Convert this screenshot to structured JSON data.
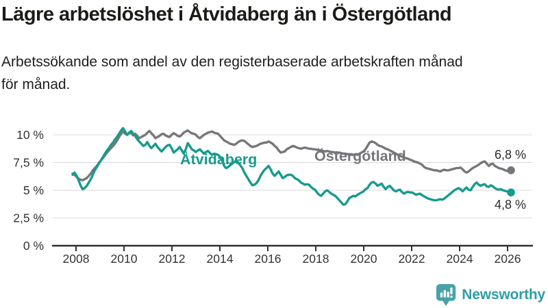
{
  "header": {
    "title": "Lägre arbetslöshet i Åtvidaberg än i Östergötland",
    "subtitle": "Arbetssökande som andel av den registerbaserade arbetskraften månad\nför månad."
  },
  "footer": {
    "brand": "Newsworthy"
  },
  "colors": {
    "atvidaberg": "#169b8e",
    "ostergotland": "#76767b",
    "grid": "#d9d9d9",
    "axis": "#2e2e2e",
    "tick_text": "#333333",
    "end_label_text": "#2c2c2c",
    "title_text": "#1b1b18",
    "brand_teal": "#2d9da5",
    "brand_icon_teal": "#4aa2a6"
  },
  "chart_data": {
    "type": "line",
    "title": "Lägre arbetslöshet i Åtvidaberg än i Östergötland",
    "subtitle": "Arbetssökande som andel av den registerbaserade arbetskraften månad för månad.",
    "unit": "%",
    "frequency": "monthly",
    "x_range": [
      "2008-01",
      "2026-02"
    ],
    "x_ticks": [
      2008,
      2010,
      2012,
      2014,
      2016,
      2018,
      2020,
      2022,
      2024,
      2026
    ],
    "x_tick_labels": [
      "2008",
      "2010",
      "2012",
      "2014",
      "2016",
      "2018",
      "2020",
      "2022",
      "2024",
      "2026"
    ],
    "y_ticks": [
      0,
      2.5,
      5,
      7.5,
      10
    ],
    "y_tick_labels": [
      "0 %",
      "2,5 %",
      "5 %",
      "7,5 %",
      "10 %"
    ],
    "ylim": [
      0,
      11.5
    ],
    "grid": "horizontal",
    "legend": "inline-labels",
    "series": [
      {
        "id": "atvidaberg",
        "name": "Åtvidaberg",
        "color": "#169b8e",
        "end_label": "4,8 %",
        "end_value": 4.8,
        "values": [
          6.4,
          6.6,
          6.3,
          5.9,
          5.4,
          5.1,
          5.2,
          5.4,
          5.7,
          6.0,
          6.4,
          6.8,
          7.1,
          7.4,
          7.7,
          8.0,
          8.3,
          8.6,
          8.8,
          9.1,
          9.3,
          9.6,
          9.8,
          10.1,
          10.4,
          10.6,
          10.3,
          10.0,
          10.2,
          10.35,
          10.1,
          9.9,
          9.6,
          9.4,
          9.2,
          9.0,
          9.1,
          9.35,
          9.0,
          8.8,
          9.0,
          9.2,
          8.9,
          8.7,
          8.5,
          8.7,
          8.9,
          9.05,
          9.1,
          8.8,
          8.4,
          8.55,
          8.7,
          8.9,
          8.6,
          8.3,
          8.7,
          9.25,
          9.0,
          8.7,
          8.6,
          8.45,
          8.6,
          8.7,
          8.5,
          8.3,
          8.45,
          8.55,
          8.35,
          8.2,
          8.3,
          8.25,
          8.2,
          8.0,
          7.7,
          7.2,
          7.0,
          7.1,
          7.25,
          7.4,
          7.55,
          7.65,
          7.5,
          7.25,
          7.0,
          6.6,
          6.3,
          6.0,
          5.7,
          5.45,
          5.5,
          5.65,
          5.9,
          6.3,
          6.6,
          6.85,
          7.0,
          7.2,
          6.9,
          6.5,
          6.3,
          6.5,
          6.7,
          6.4,
          6.1,
          6.2,
          6.35,
          6.4,
          6.4,
          6.3,
          6.1,
          6.0,
          5.9,
          5.7,
          5.6,
          5.5,
          5.55,
          5.5,
          5.3,
          5.15,
          5.05,
          4.8,
          4.6,
          4.5,
          4.7,
          4.9,
          5.0,
          4.85,
          4.7,
          4.6,
          4.5,
          4.3,
          4.1,
          3.9,
          3.7,
          3.75,
          4.0,
          4.3,
          4.4,
          4.5,
          4.45,
          4.6,
          4.7,
          4.8,
          4.9,
          5.1,
          5.2,
          5.5,
          5.7,
          5.75,
          5.6,
          5.4,
          5.5,
          5.6,
          5.3,
          5.1,
          5.3,
          5.4,
          5.2,
          5.0,
          4.9,
          5.0,
          5.05,
          4.85,
          4.7,
          4.8,
          4.85,
          4.8,
          4.8,
          4.7,
          4.6,
          4.65,
          4.7,
          4.55,
          4.45,
          4.35,
          4.25,
          4.2,
          4.15,
          4.1,
          4.1,
          4.15,
          4.2,
          4.15,
          4.25,
          4.4,
          4.55,
          4.7,
          4.85,
          5.0,
          5.1,
          5.2,
          5.1,
          4.9,
          5.1,
          5.25,
          5.05,
          5.0,
          5.3,
          5.55,
          5.7,
          5.5,
          5.4,
          5.5,
          5.55,
          5.35,
          5.3,
          5.45,
          5.35,
          5.2,
          5.1,
          5.05,
          5.1,
          5.0,
          4.95,
          4.9,
          4.85,
          4.8
        ]
      },
      {
        "id": "ostergotland",
        "name": "Östergötland",
        "color": "#76767b",
        "end_label": "6,8 %",
        "end_value": 6.8,
        "values": [
          6.5,
          6.4,
          6.2,
          6.05,
          5.95,
          5.9,
          6.0,
          6.1,
          6.3,
          6.5,
          6.8,
          7.0,
          7.2,
          7.45,
          7.7,
          7.9,
          8.15,
          8.4,
          8.6,
          8.8,
          9.0,
          9.2,
          9.5,
          9.8,
          10.1,
          10.3,
          10.1,
          10.0,
          10.15,
          10.2,
          9.95,
          10.1,
          9.9,
          9.7,
          9.8,
          9.9,
          10.0,
          10.2,
          10.35,
          10.15,
          9.95,
          9.7,
          9.8,
          9.9,
          10.05,
          10.1,
          9.95,
          9.85,
          9.8,
          10.0,
          10.15,
          10.05,
          9.9,
          9.85,
          10.0,
          10.2,
          10.3,
          10.4,
          10.25,
          10.15,
          10.1,
          10.0,
          9.8,
          9.7,
          9.85,
          10.0,
          10.1,
          10.2,
          10.25,
          10.3,
          10.2,
          10.15,
          10.1,
          9.9,
          9.7,
          9.5,
          9.4,
          9.3,
          9.2,
          9.15,
          9.1,
          9.2,
          9.35,
          9.45,
          9.5,
          9.45,
          9.3,
          9.15,
          9.0,
          8.9,
          8.95,
          9.0,
          9.1,
          9.2,
          9.25,
          9.3,
          9.3,
          9.4,
          9.3,
          9.2,
          9.0,
          8.85,
          8.6,
          8.4,
          8.45,
          8.5,
          8.7,
          8.8,
          8.9,
          9.0,
          8.95,
          8.85,
          8.8,
          8.75,
          8.8,
          8.85,
          8.8,
          8.75,
          8.75,
          8.7,
          8.7,
          8.65,
          8.6,
          8.6,
          8.55,
          8.5,
          8.55,
          8.5,
          8.45,
          8.45,
          8.4,
          8.4,
          8.4,
          8.35,
          8.3,
          8.3,
          8.25,
          8.25,
          8.2,
          8.2,
          8.25,
          8.2,
          8.3,
          8.4,
          8.5,
          8.7,
          9.0,
          9.3,
          9.4,
          9.35,
          9.25,
          9.1,
          9.0,
          8.95,
          8.85,
          8.75,
          8.7,
          8.6,
          8.5,
          8.4,
          8.3,
          8.2,
          8.1,
          8.05,
          7.95,
          7.9,
          7.85,
          7.75,
          7.7,
          7.6,
          7.55,
          7.5,
          7.4,
          7.3,
          7.1,
          7.0,
          6.95,
          6.9,
          6.85,
          6.8,
          6.8,
          6.75,
          6.7,
          6.8,
          6.85,
          6.8,
          6.8,
          6.85,
          6.9,
          6.95,
          7.0,
          7.0,
          7.05,
          6.9,
          6.7,
          6.6,
          6.7,
          6.85,
          7.0,
          7.1,
          7.2,
          7.3,
          7.45,
          7.55,
          7.6,
          7.4,
          7.2,
          7.35,
          7.4,
          7.2,
          7.1,
          7.0,
          6.95,
          6.9,
          6.8,
          6.75,
          6.8,
          6.8
        ]
      }
    ]
  }
}
